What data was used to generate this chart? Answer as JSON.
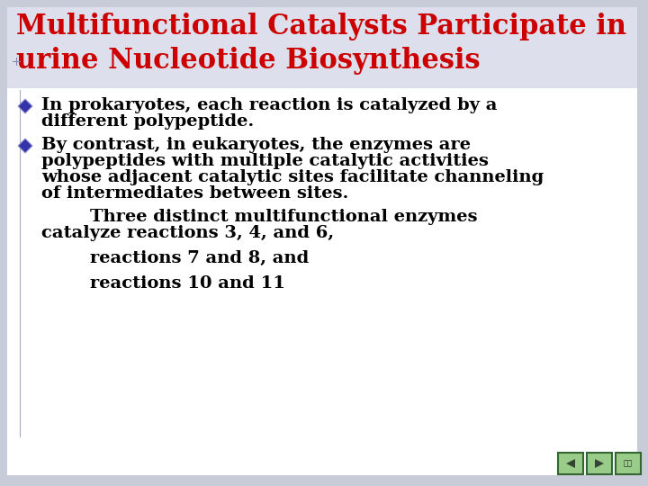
{
  "bg_outer": "#c8ccd8",
  "bg_inner": "#ffffff",
  "title_line1": "Multifunctional Catalysts Participate in",
  "title_line2": "urine Nucleotide Biosynthesis",
  "title_color": "#cc0000",
  "title_fontsize": 22,
  "bullet_color": "#3333aa",
  "bullet_border": "#9999cc",
  "bullet1_line1": "In prokaryotes, each reaction is catalyzed by a",
  "bullet1_line2": "different polypeptide.",
  "bullet2_line1": "By contrast, in eukaryotes, the enzymes are",
  "bullet2_line2": "polypeptides with multiple catalytic activities",
  "bullet2_line3": "whose adjacent catalytic sites facilitate channeling",
  "bullet2_line4": "of intermediates between sites.",
  "para_line1": "        Three distinct multifunctional enzymes",
  "para_line2": "catalyze reactions 3, 4, and 6,",
  "para_line3": "        reactions 7 and 8, and",
  "para_line4": "        reactions 10 and 11",
  "body_fontsize": 14,
  "body_color": "#000000",
  "nav_button_bg": "#99cc88",
  "nav_button_border": "#336633",
  "nav_arrow_color": "#334433"
}
